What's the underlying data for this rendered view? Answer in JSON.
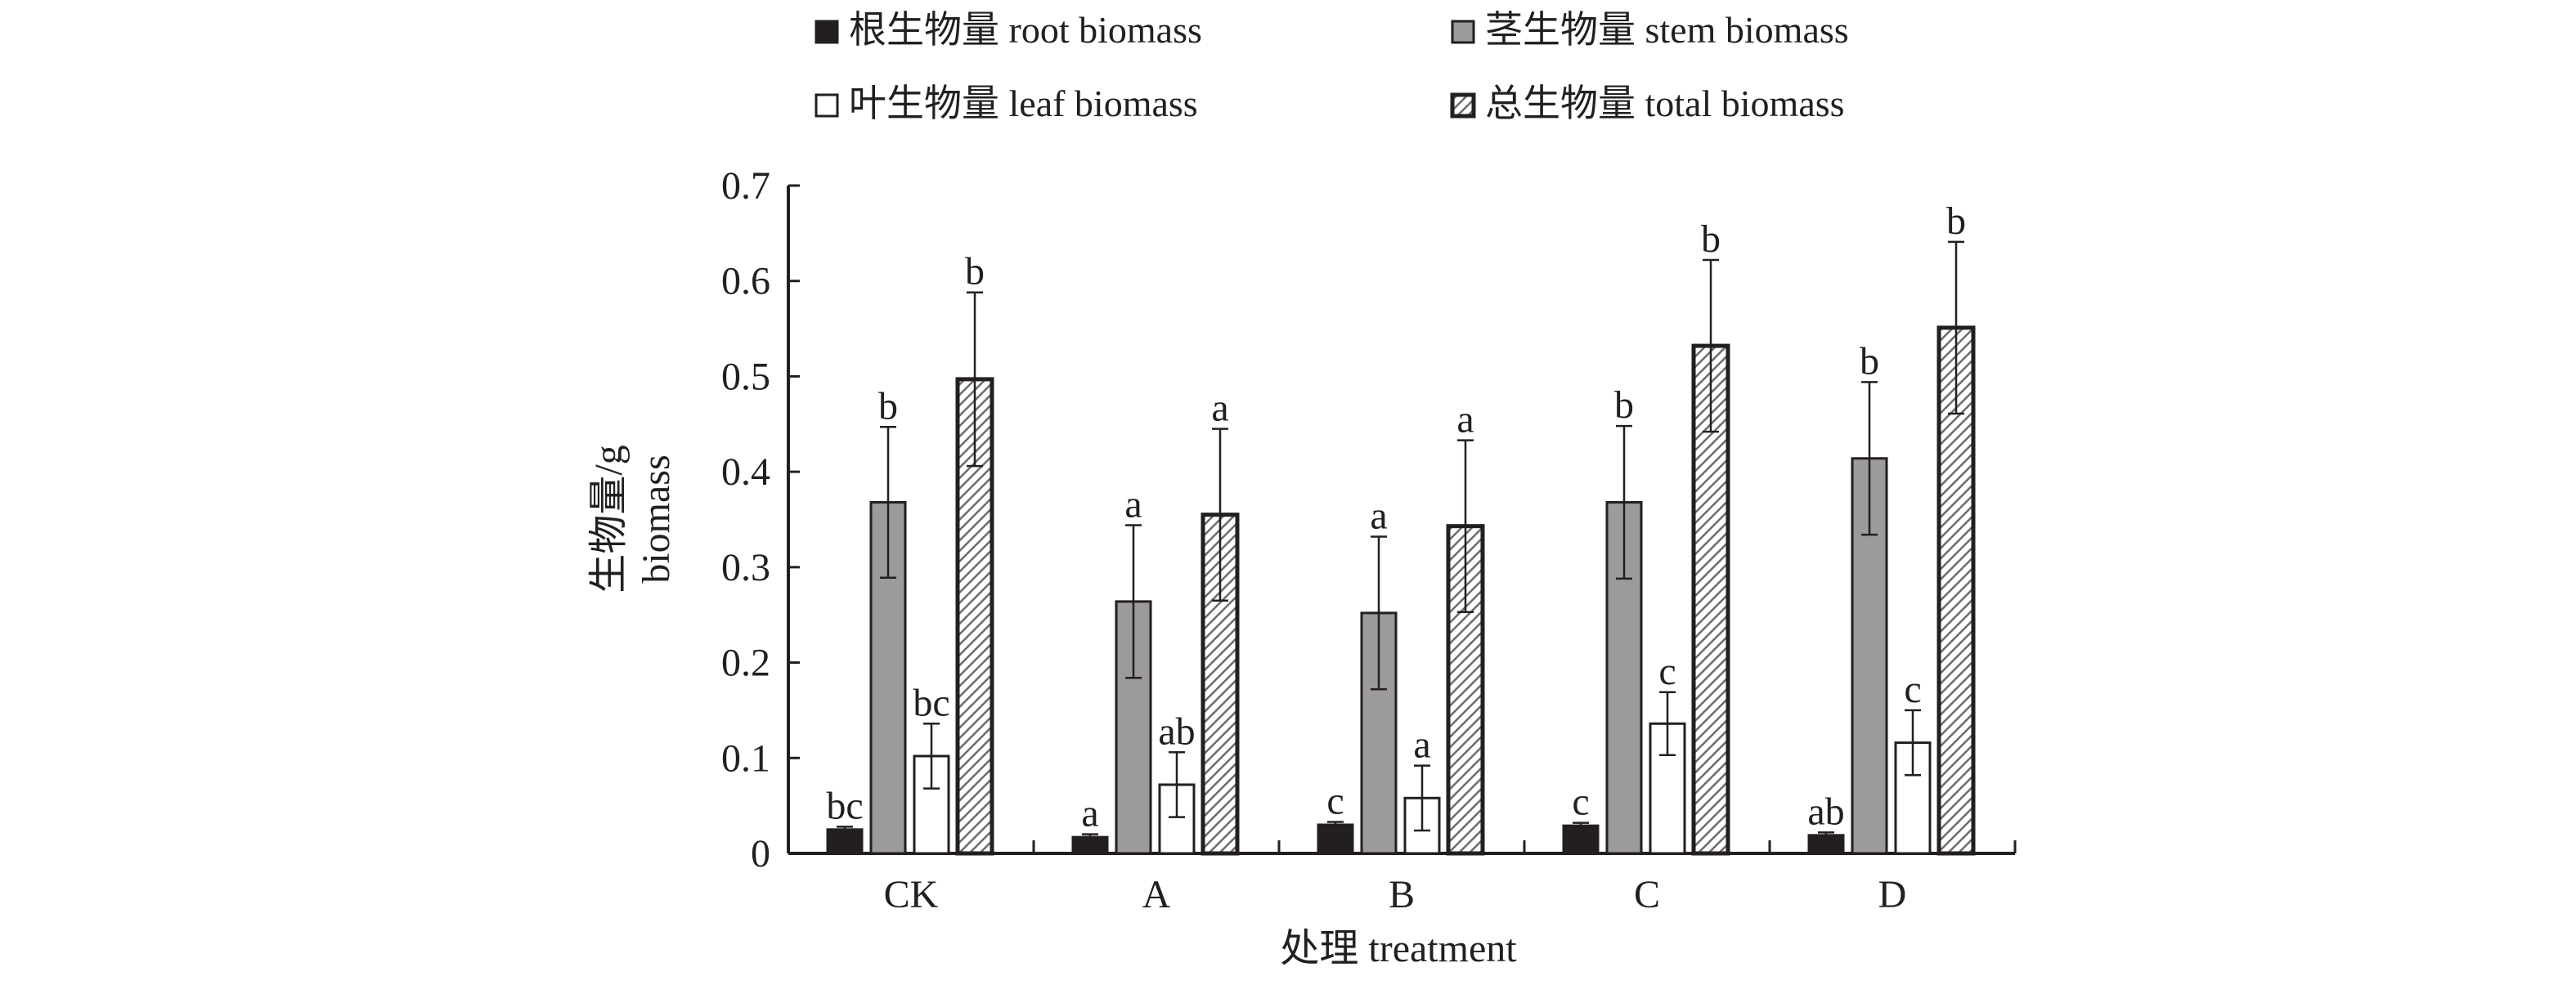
{
  "chart_data": {
    "type": "bar",
    "title": "",
    "xlabel": "处理 treatment",
    "ylabel": [
      "生物量/g",
      "biomass"
    ],
    "ylim": [
      0,
      0.7
    ],
    "yticks": [
      "0",
      "0.1",
      "0.2",
      "0.3",
      "0.4",
      "0.5",
      "0.6",
      "0.7"
    ],
    "grid": false,
    "legend_placement": "top",
    "categories": [
      "CK",
      "A",
      "B",
      "C",
      "D"
    ],
    "series": [
      {
        "name": "根生物量 root biomass",
        "key": "root",
        "fill": "#231f20",
        "values": [
          0.025,
          0.017,
          0.03,
          0.029,
          0.019
        ],
        "errors": [
          0.003,
          0.003,
          0.003,
          0.003,
          0.003
        ],
        "letters": [
          "bc",
          "a",
          "c",
          "c",
          "ab"
        ]
      },
      {
        "name": "茎生物量 stem biomass",
        "key": "stem",
        "fill": "#9c9a9b",
        "values": [
          0.368,
          0.264,
          0.252,
          0.368,
          0.414
        ],
        "errors": [
          0.079,
          0.08,
          0.08,
          0.08,
          0.08
        ],
        "letters": [
          "b",
          "a",
          "a",
          "b",
          "b"
        ]
      },
      {
        "name": "叶生物量 leaf biomass",
        "key": "leaf",
        "fill": "#ffffff",
        "values": [
          0.102,
          0.072,
          0.058,
          0.136,
          0.116
        ],
        "errors": [
          0.034,
          0.034,
          0.034,
          0.033,
          0.034
        ],
        "letters": [
          "bc",
          "ab",
          "a",
          "c",
          "c"
        ]
      },
      {
        "name": "总生物量 total biomass",
        "key": "total",
        "fill": "hatch",
        "values": [
          0.497,
          0.355,
          0.343,
          0.532,
          0.551
        ],
        "errors": [
          0.091,
          0.09,
          0.09,
          0.09,
          0.09
        ],
        "letters": [
          "b",
          "a",
          "a",
          "b",
          "b"
        ]
      }
    ]
  }
}
